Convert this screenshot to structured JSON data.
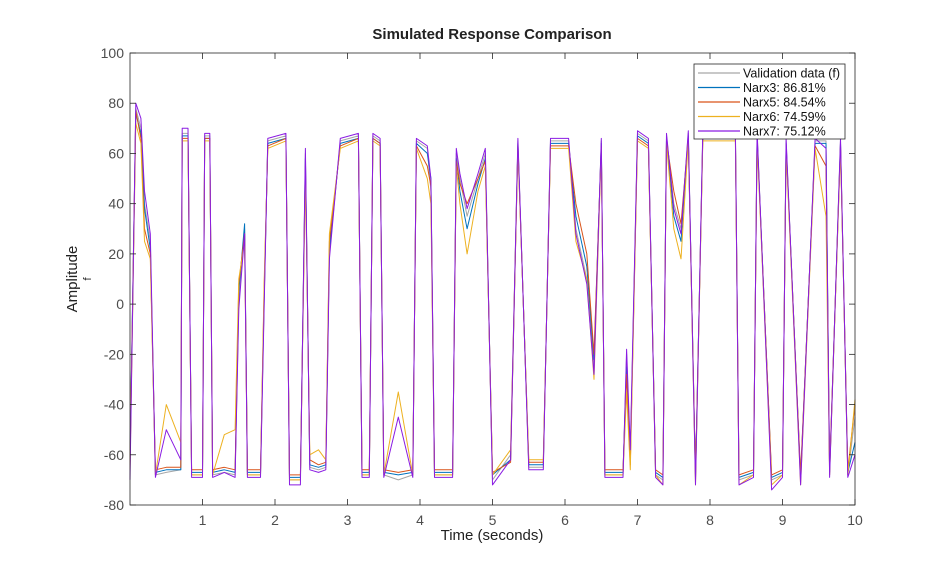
{
  "chart_data": {
    "type": "line",
    "title": "Simulated Response Comparison",
    "xlabel": "Time (seconds)",
    "ylabel": "Amplitude",
    "ylabel_sub": "f",
    "xlim": [
      0,
      10
    ],
    "ylim": [
      -80,
      100
    ],
    "xticks": [
      1,
      2,
      3,
      4,
      5,
      6,
      7,
      8,
      9,
      10
    ],
    "yticks": [
      -80,
      -60,
      -40,
      -20,
      0,
      20,
      40,
      60,
      80,
      100
    ],
    "grid": false,
    "legend_position": "top-right",
    "x": [
      0,
      0.08,
      0.15,
      0.2,
      0.28,
      0.35,
      0.5,
      0.7,
      0.72,
      0.8,
      0.85,
      1.0,
      1.03,
      1.1,
      1.14,
      1.3,
      1.45,
      1.5,
      1.58,
      1.62,
      1.8,
      1.85,
      1.9,
      2.15,
      2.2,
      2.35,
      2.42,
      2.48,
      2.6,
      2.7,
      2.75,
      2.9,
      3.15,
      3.2,
      3.3,
      3.35,
      3.45,
      3.5,
      3.7,
      3.9,
      3.95,
      4.1,
      4.15,
      4.2,
      4.45,
      4.5,
      4.55,
      4.65,
      4.8,
      4.9,
      5.0,
      5.25,
      5.35,
      5.5,
      5.7,
      5.8,
      6.05,
      6.15,
      6.3,
      6.4,
      6.5,
      6.55,
      6.8,
      6.85,
      6.9,
      7.0,
      7.15,
      7.25,
      7.35,
      7.4,
      7.5,
      7.6,
      7.7,
      7.8,
      7.9,
      8.35,
      8.4,
      8.6,
      8.65,
      8.85,
      9.0,
      9.05,
      9.25,
      9.45,
      9.6,
      9.65,
      9.8,
      9.9,
      10
    ],
    "series": [
      {
        "name": "Validation data (f)",
        "color": "#a6a6a6",
        "values": [
          -60,
          78,
          70,
          40,
          25,
          -68,
          -67,
          -66,
          68,
          68,
          -68,
          -68,
          67,
          67,
          -68,
          -67,
          -68,
          0,
          30,
          -68,
          -68,
          0,
          65,
          67,
          -70,
          -70,
          60,
          -65,
          -66,
          -65,
          20,
          65,
          67,
          -68,
          -68,
          67,
          65,
          -68,
          -70,
          -68,
          65,
          62,
          45,
          -68,
          -68,
          60,
          50,
          35,
          50,
          60,
          -70,
          -60,
          65,
          -65,
          -65,
          65,
          65,
          30,
          10,
          -25,
          65,
          -68,
          -68,
          -20,
          -60,
          68,
          65,
          -68,
          -70,
          67,
          40,
          30,
          68,
          -70,
          68,
          68,
          -70,
          -68,
          68,
          -70,
          -68,
          65,
          -70,
          65,
          65,
          -68,
          65,
          -68,
          -45
        ]
      },
      {
        "name": "Narx3: 86.81%",
        "color": "#0072bd",
        "values": [
          -62,
          76,
          68,
          38,
          22,
          -67,
          -66,
          -66,
          67,
          67,
          -67,
          -67,
          66,
          66,
          -67,
          -66,
          -67,
          5,
          32,
          -67,
          -67,
          2,
          64,
          66,
          -69,
          -69,
          58,
          -64,
          -65,
          -64,
          22,
          64,
          66,
          -67,
          -67,
          66,
          64,
          -67,
          -68,
          -67,
          64,
          60,
          50,
          -67,
          -67,
          58,
          45,
          30,
          48,
          58,
          -68,
          -62,
          64,
          -64,
          -64,
          64,
          64,
          35,
          15,
          -22,
          64,
          -67,
          -67,
          -25,
          -62,
          67,
          64,
          -67,
          -69,
          66,
          35,
          25,
          67,
          -69,
          67,
          67,
          -69,
          -67,
          67,
          -69,
          -67,
          64,
          -69,
          64,
          64,
          -67,
          64,
          -67,
          -55
        ]
      },
      {
        "name": "Narx5: 84.54%",
        "color": "#d95319",
        "values": [
          -64,
          77,
          66,
          30,
          20,
          -66,
          -65,
          -65,
          66,
          66,
          -66,
          -66,
          66,
          66,
          -66,
          -65,
          -66,
          8,
          28,
          -66,
          -66,
          5,
          63,
          66,
          -68,
          -68,
          55,
          -62,
          -64,
          -63,
          25,
          63,
          66,
          -66,
          -66,
          66,
          64,
          -66,
          -67,
          -66,
          63,
          55,
          47,
          -66,
          -66,
          57,
          48,
          40,
          50,
          57,
          -67,
          -63,
          63,
          -63,
          -63,
          63,
          63,
          40,
          20,
          -20,
          63,
          -66,
          -66,
          -28,
          -64,
          66,
          63,
          -66,
          -68,
          65,
          45,
          32,
          66,
          -68,
          66,
          66,
          -68,
          -66,
          66,
          -68,
          -66,
          63,
          -68,
          63,
          55,
          -66,
          63,
          -66,
          -40
        ]
      },
      {
        "name": "Narx6: 74.59%",
        "color": "#edb120",
        "values": [
          -66,
          72,
          64,
          25,
          18,
          -68,
          -40,
          -55,
          65,
          65,
          -68,
          -68,
          65,
          65,
          -68,
          -52,
          -50,
          10,
          25,
          -68,
          -68,
          8,
          62,
          65,
          -70,
          -70,
          52,
          -60,
          -58,
          -62,
          28,
          62,
          65,
          -68,
          -68,
          65,
          63,
          -68,
          -35,
          -68,
          62,
          50,
          40,
          -68,
          -68,
          55,
          40,
          20,
          45,
          55,
          -68,
          -58,
          62,
          -62,
          -62,
          62,
          62,
          25,
          10,
          -30,
          62,
          -68,
          -68,
          -35,
          -66,
          65,
          62,
          -68,
          -72,
          64,
          30,
          18,
          65,
          -72,
          65,
          65,
          -72,
          -68,
          65,
          -72,
          -68,
          62,
          -72,
          62,
          35,
          -68,
          62,
          -68,
          -38
        ]
      },
      {
        "name": "Narx7: 75.12%",
        "color": "#8a1be2",
        "values": [
          -70,
          80,
          74,
          45,
          28,
          -69,
          -50,
          -62,
          70,
          70,
          -69,
          -69,
          68,
          68,
          -69,
          -67,
          -69,
          -2,
          28,
          -69,
          -69,
          -2,
          66,
          68,
          -72,
          -72,
          62,
          -66,
          -67,
          -66,
          18,
          66,
          68,
          -69,
          -69,
          68,
          66,
          -69,
          -45,
          -69,
          66,
          63,
          50,
          -69,
          -69,
          62,
          52,
          38,
          52,
          62,
          -72,
          -62,
          66,
          -66,
          -66,
          66,
          66,
          28,
          8,
          -28,
          66,
          -69,
          -69,
          -18,
          -58,
          69,
          66,
          -69,
          -72,
          68,
          38,
          28,
          69,
          -72,
          69,
          69,
          -72,
          -69,
          69,
          -74,
          -69,
          66,
          -72,
          66,
          62,
          -69,
          66,
          -69,
          -60
        ]
      }
    ]
  }
}
